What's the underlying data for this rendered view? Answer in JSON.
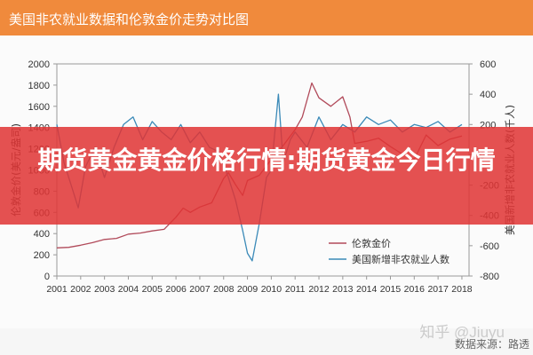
{
  "header": {
    "title": "美国非农就业数据和伦敦金价走势对比图"
  },
  "overlay": {
    "title": "期货黄金黄金价格行情:期货黄金今日行情"
  },
  "footer": {
    "watermark": "知乎 @Jiuyu",
    "source": "数据来源：路透"
  },
  "colors": {
    "gold": "#b14a5a",
    "payrolls": "#3b8ab8",
    "header": "#f08a3c",
    "overlay": "#e03434"
  },
  "chart_data": {
    "type": "line",
    "xlabel": "",
    "ylabel_left": "伦敦金价(美元/盎司)",
    "ylabel_right": "美国新增非农就业人数(千人)",
    "x_ticks": [
      "2001",
      "2002",
      "2003",
      "2004",
      "2005",
      "2006",
      "2007",
      "2008",
      "2009",
      "2010",
      "2011",
      "2012",
      "2013",
      "2014",
      "2015",
      "2016",
      "2017",
      "2018"
    ],
    "y_left_ticks": [
      "2000",
      "1800",
      "1600",
      "1400",
      "1200",
      "1000",
      "800",
      "600",
      "400",
      "200",
      "0"
    ],
    "y_right_ticks": [
      "600",
      "400",
      "200",
      "0",
      "-200",
      "-400",
      "-600",
      "-800"
    ],
    "ylim_left": [
      0,
      2000
    ],
    "ylim_right": [
      -800,
      600
    ],
    "legend": [
      "伦敦金价",
      "美国新增非农就业人数"
    ],
    "legend_position": "lower-right",
    "grid": false,
    "series": [
      {
        "name": "伦敦金价",
        "axis": "left",
        "x": [
          2001,
          2001.5,
          2002,
          2002.5,
          2003,
          2003.5,
          2004,
          2004.5,
          2005,
          2005.5,
          2006,
          2006.3,
          2006.6,
          2007,
          2007.5,
          2008,
          2008.2,
          2008.5,
          2008.8,
          2009,
          2009.5,
          2010,
          2010.5,
          2011,
          2011.3,
          2011.7,
          2012,
          2012.5,
          2013,
          2013.3,
          2013.5,
          2014,
          2014.5,
          2015,
          2015.5,
          2016,
          2016.5,
          2017,
          2017.5,
          2018
        ],
        "values": [
          265,
          270,
          290,
          315,
          345,
          355,
          395,
          405,
          425,
          440,
          555,
          640,
          600,
          650,
          690,
          920,
          975,
          860,
          760,
          900,
          950,
          1100,
          1230,
          1380,
          1500,
          1820,
          1680,
          1600,
          1690,
          1500,
          1250,
          1270,
          1300,
          1220,
          1150,
          1100,
          1330,
          1230,
          1290,
          1320
        ]
      },
      {
        "name": "美国新增非农就业人数",
        "axis": "right",
        "x": [
          2001,
          2001.3,
          2001.6,
          2001.9,
          2002.2,
          2002.6,
          2003,
          2003.4,
          2003.8,
          2004.2,
          2004.6,
          2005,
          2005.4,
          2005.8,
          2006.2,
          2006.6,
          2007,
          2007.4,
          2007.8,
          2008.2,
          2008.5,
          2008.8,
          2009,
          2009.2,
          2009.5,
          2009.8,
          2010,
          2010.3,
          2010.5,
          2010.8,
          2011,
          2011.5,
          2012,
          2012.5,
          2013,
          2013.5,
          2014,
          2014.5,
          2015,
          2015.5,
          2016,
          2016.5,
          2017,
          2017.5,
          2018
        ],
        "values": [
          200,
          -50,
          -200,
          -350,
          -80,
          50,
          -150,
          50,
          200,
          250,
          100,
          220,
          150,
          100,
          200,
          80,
          150,
          50,
          20,
          -150,
          -300,
          -500,
          -650,
          -700,
          -450,
          -150,
          -100,
          400,
          -50,
          100,
          150,
          50,
          250,
          100,
          200,
          150,
          250,
          200,
          230,
          150,
          200,
          180,
          220,
          150,
          200
        ]
      }
    ]
  }
}
